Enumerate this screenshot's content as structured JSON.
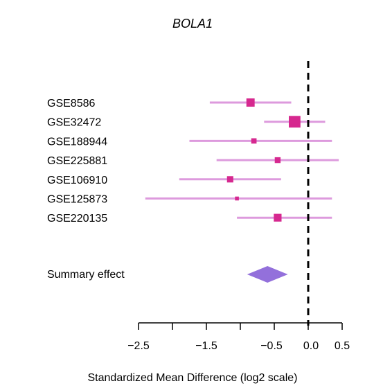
{
  "chart_data": {
    "type": "forest",
    "title": "BOLA1",
    "xlabel": "Standardized Mean Difference (log2 scale)",
    "xlim": [
      -2.5,
      0.5
    ],
    "ticks": [
      -2.5,
      -1.5,
      -0.5,
      0.0,
      0.5
    ],
    "tick_labels": [
      "−2.5",
      "−1.5",
      "−0.5",
      "0.0",
      "0.5"
    ],
    "reference_line": 0,
    "study_color": "#d6288f",
    "ci_color": "#dd9add",
    "summary_color": "#9370db",
    "studies": [
      {
        "name": "GSE8586",
        "estimate": -0.85,
        "lower": -1.45,
        "upper": -0.25,
        "weight": 1.7
      },
      {
        "name": "GSE32472",
        "estimate": -0.2,
        "lower": -0.65,
        "upper": 0.25,
        "weight": 2.4
      },
      {
        "name": "GSE188944",
        "estimate": -0.8,
        "lower": -1.75,
        "upper": 0.35,
        "weight": 1.1
      },
      {
        "name": "GSE225881",
        "estimate": -0.45,
        "lower": -1.35,
        "upper": 0.45,
        "weight": 1.2
      },
      {
        "name": "GSE106910",
        "estimate": -1.15,
        "lower": -1.9,
        "upper": -0.4,
        "weight": 1.3
      },
      {
        "name": "GSE125873",
        "estimate": -1.05,
        "lower": -2.4,
        "upper": 0.35,
        "weight": 0.8
      },
      {
        "name": "GSE220135",
        "estimate": -0.45,
        "lower": -1.05,
        "upper": 0.35,
        "weight": 1.6
      }
    ],
    "summary": {
      "name": "Summary effect",
      "estimate": -0.6,
      "lower": -0.9,
      "upper": -0.3
    }
  }
}
